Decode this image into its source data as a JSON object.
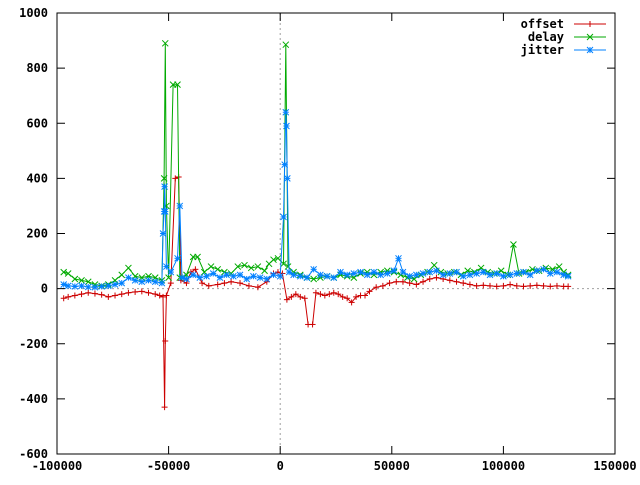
{
  "chart_data": {
    "type": "line",
    "title": "",
    "xlabel": "",
    "ylabel": "",
    "xlim": [
      -100000,
      150000
    ],
    "ylim": [
      -600,
      1000
    ],
    "x_ticks": [
      -100000,
      -50000,
      0,
      50000,
      100000,
      150000
    ],
    "x_tick_labels": [
      "-100000",
      "-50000",
      "0",
      "50000",
      "100000",
      "150000"
    ],
    "y_ticks": [
      -600,
      -400,
      -200,
      0,
      200,
      400,
      600,
      800,
      1000
    ],
    "y_tick_labels": [
      "-600",
      "-400",
      "-200",
      "0",
      "200",
      "400",
      "600",
      "800",
      "1000"
    ],
    "grid": false,
    "zero_axes": true,
    "legend_position": "top-right",
    "legend": [
      "offset",
      "delay",
      "jitter"
    ],
    "series": [
      {
        "name": "offset",
        "color": "#cc0000",
        "marker": "plus",
        "points": [
          [
            -97000,
            -35
          ],
          [
            -95000,
            -30
          ],
          [
            -92000,
            -25
          ],
          [
            -89000,
            -20
          ],
          [
            -86000,
            -15
          ],
          [
            -83000,
            -18
          ],
          [
            -80000,
            -22
          ],
          [
            -77000,
            -30
          ],
          [
            -74000,
            -25
          ],
          [
            -71000,
            -20
          ],
          [
            -68000,
            -15
          ],
          [
            -65000,
            -12
          ],
          [
            -62000,
            -10
          ],
          [
            -59000,
            -15
          ],
          [
            -56000,
            -20
          ],
          [
            -54000,
            -25
          ],
          [
            -52500,
            -30
          ],
          [
            -51800,
            -430
          ],
          [
            -51500,
            -190
          ],
          [
            -51000,
            -25
          ],
          [
            -49000,
            20
          ],
          [
            -47000,
            400
          ],
          [
            -45500,
            405
          ],
          [
            -44500,
            30
          ],
          [
            -42000,
            20
          ],
          [
            -40000,
            60
          ],
          [
            -38000,
            70
          ],
          [
            -35000,
            20
          ],
          [
            -32000,
            10
          ],
          [
            -28000,
            15
          ],
          [
            -25000,
            20
          ],
          [
            -22000,
            25
          ],
          [
            -18000,
            20
          ],
          [
            -14000,
            10
          ],
          [
            -10000,
            5
          ],
          [
            -6000,
            25
          ],
          [
            -3000,
            55
          ],
          [
            -1000,
            60
          ],
          [
            1000,
            55
          ],
          [
            3000,
            -40
          ],
          [
            5000,
            -30
          ],
          [
            7000,
            -20
          ],
          [
            9000,
            -30
          ],
          [
            11000,
            -35
          ],
          [
            12500,
            -130
          ],
          [
            14500,
            -130
          ],
          [
            16000,
            -15
          ],
          [
            18000,
            -20
          ],
          [
            20000,
            -25
          ],
          [
            22000,
            -20
          ],
          [
            24000,
            -15
          ],
          [
            26000,
            -20
          ],
          [
            28000,
            -30
          ],
          [
            30000,
            -35
          ],
          [
            32000,
            -50
          ],
          [
            34000,
            -30
          ],
          [
            36000,
            -25
          ],
          [
            38000,
            -25
          ],
          [
            40000,
            -10
          ],
          [
            43000,
            5
          ],
          [
            46000,
            10
          ],
          [
            49000,
            20
          ],
          [
            52000,
            25
          ],
          [
            55000,
            25
          ],
          [
            58000,
            20
          ],
          [
            61000,
            15
          ],
          [
            64000,
            25
          ],
          [
            67000,
            35
          ],
          [
            70000,
            40
          ],
          [
            73000,
            35
          ],
          [
            76000,
            30
          ],
          [
            79000,
            25
          ],
          [
            82000,
            20
          ],
          [
            85000,
            15
          ],
          [
            88000,
            10
          ],
          [
            91000,
            12
          ],
          [
            94000,
            10
          ],
          [
            97000,
            8
          ],
          [
            100000,
            10
          ],
          [
            103000,
            15
          ],
          [
            106000,
            10
          ],
          [
            109000,
            8
          ],
          [
            112000,
            10
          ],
          [
            115000,
            12
          ],
          [
            118000,
            10
          ],
          [
            121000,
            8
          ],
          [
            124000,
            10
          ],
          [
            127000,
            8
          ],
          [
            129000,
            8
          ]
        ]
      },
      {
        "name": "delay",
        "color": "#00aa00",
        "marker": "cross",
        "points": [
          [
            -97000,
            60
          ],
          [
            -95000,
            55
          ],
          [
            -92000,
            35
          ],
          [
            -89000,
            30
          ],
          [
            -86000,
            25
          ],
          [
            -83000,
            15
          ],
          [
            -80000,
            10
          ],
          [
            -77000,
            15
          ],
          [
            -74000,
            30
          ],
          [
            -71000,
            50
          ],
          [
            -68000,
            75
          ],
          [
            -65000,
            45
          ],
          [
            -62000,
            40
          ],
          [
            -59000,
            45
          ],
          [
            -56000,
            40
          ],
          [
            -53000,
            30
          ],
          [
            -52000,
            400
          ],
          [
            -51500,
            890
          ],
          [
            -51000,
            300
          ],
          [
            -50000,
            40
          ],
          [
            -48000,
            740
          ],
          [
            -46000,
            740
          ],
          [
            -45000,
            40
          ],
          [
            -42000,
            50
          ],
          [
            -39000,
            115
          ],
          [
            -37000,
            115
          ],
          [
            -34000,
            60
          ],
          [
            -31000,
            80
          ],
          [
            -28000,
            70
          ],
          [
            -25000,
            60
          ],
          [
            -22000,
            55
          ],
          [
            -19000,
            80
          ],
          [
            -16000,
            85
          ],
          [
            -13000,
            75
          ],
          [
            -10000,
            80
          ],
          [
            -7000,
            65
          ],
          [
            -5000,
            90
          ],
          [
            -3000,
            105
          ],
          [
            -1000,
            110
          ],
          [
            1500,
            90
          ],
          [
            2500,
            885
          ],
          [
            3500,
            80
          ],
          [
            6000,
            60
          ],
          [
            9000,
            50
          ],
          [
            12000,
            40
          ],
          [
            15000,
            35
          ],
          [
            18000,
            40
          ],
          [
            21000,
            45
          ],
          [
            24000,
            40
          ],
          [
            27000,
            50
          ],
          [
            30000,
            45
          ],
          [
            33000,
            40
          ],
          [
            36000,
            55
          ],
          [
            39000,
            60
          ],
          [
            42000,
            50
          ],
          [
            45000,
            60
          ],
          [
            48000,
            65
          ],
          [
            51000,
            60
          ],
          [
            54000,
            50
          ],
          [
            57000,
            40
          ],
          [
            60000,
            35
          ],
          [
            63000,
            50
          ],
          [
            66000,
            60
          ],
          [
            69000,
            85
          ],
          [
            72000,
            60
          ],
          [
            75000,
            55
          ],
          [
            78000,
            60
          ],
          [
            81000,
            50
          ],
          [
            84000,
            65
          ],
          [
            87000,
            60
          ],
          [
            90000,
            75
          ],
          [
            93000,
            60
          ],
          [
            96000,
            55
          ],
          [
            99000,
            65
          ],
          [
            102000,
            50
          ],
          [
            104500,
            160
          ],
          [
            107000,
            55
          ],
          [
            110000,
            60
          ],
          [
            113000,
            70
          ],
          [
            116000,
            65
          ],
          [
            119000,
            75
          ],
          [
            122000,
            70
          ],
          [
            125000,
            80
          ],
          [
            127000,
            60
          ],
          [
            129000,
            50
          ]
        ]
      },
      {
        "name": "jitter",
        "color": "#0080ff",
        "marker": "star",
        "points": [
          [
            -97000,
            15
          ],
          [
            -95000,
            10
          ],
          [
            -92000,
            8
          ],
          [
            -89000,
            10
          ],
          [
            -86000,
            6
          ],
          [
            -83000,
            5
          ],
          [
            -80000,
            8
          ],
          [
            -77000,
            10
          ],
          [
            -74000,
            15
          ],
          [
            -71000,
            20
          ],
          [
            -68000,
            40
          ],
          [
            -65000,
            30
          ],
          [
            -62000,
            25
          ],
          [
            -59000,
            30
          ],
          [
            -56000,
            25
          ],
          [
            -53000,
            20
          ],
          [
            -52500,
            200
          ],
          [
            -52000,
            280
          ],
          [
            -51800,
            370
          ],
          [
            -51500,
            280
          ],
          [
            -51000,
            80
          ],
          [
            -49000,
            60
          ],
          [
            -46000,
            110
          ],
          [
            -45000,
            300
          ],
          [
            -44000,
            40
          ],
          [
            -42000,
            35
          ],
          [
            -39000,
            50
          ],
          [
            -36000,
            40
          ],
          [
            -33000,
            45
          ],
          [
            -30000,
            55
          ],
          [
            -27000,
            40
          ],
          [
            -24000,
            50
          ],
          [
            -21000,
            45
          ],
          [
            -18000,
            50
          ],
          [
            -15000,
            35
          ],
          [
            -12000,
            45
          ],
          [
            -9000,
            40
          ],
          [
            -6000,
            35
          ],
          [
            -3000,
            50
          ],
          [
            0,
            45
          ],
          [
            1500,
            260
          ],
          [
            2000,
            450
          ],
          [
            2500,
            640
          ],
          [
            2800,
            590
          ],
          [
            3200,
            400
          ],
          [
            4000,
            60
          ],
          [
            6000,
            50
          ],
          [
            9000,
            45
          ],
          [
            12000,
            40
          ],
          [
            15000,
            70
          ],
          [
            18000,
            50
          ],
          [
            21000,
            45
          ],
          [
            24000,
            40
          ],
          [
            27000,
            60
          ],
          [
            30000,
            50
          ],
          [
            33000,
            55
          ],
          [
            36000,
            60
          ],
          [
            39000,
            50
          ],
          [
            42000,
            60
          ],
          [
            45000,
            50
          ],
          [
            48000,
            55
          ],
          [
            51000,
            65
          ],
          [
            53000,
            110
          ],
          [
            55000,
            60
          ],
          [
            58000,
            45
          ],
          [
            61000,
            50
          ],
          [
            64000,
            55
          ],
          [
            67000,
            60
          ],
          [
            70000,
            65
          ],
          [
            73000,
            50
          ],
          [
            76000,
            55
          ],
          [
            79000,
            60
          ],
          [
            82000,
            45
          ],
          [
            85000,
            50
          ],
          [
            88000,
            55
          ],
          [
            91000,
            60
          ],
          [
            94000,
            50
          ],
          [
            97000,
            55
          ],
          [
            100000,
            45
          ],
          [
            103000,
            50
          ],
          [
            106000,
            55
          ],
          [
            109000,
            60
          ],
          [
            112000,
            50
          ],
          [
            115000,
            65
          ],
          [
            118000,
            70
          ],
          [
            121000,
            55
          ],
          [
            124000,
            60
          ],
          [
            127000,
            50
          ],
          [
            129000,
            45
          ]
        ]
      }
    ]
  }
}
